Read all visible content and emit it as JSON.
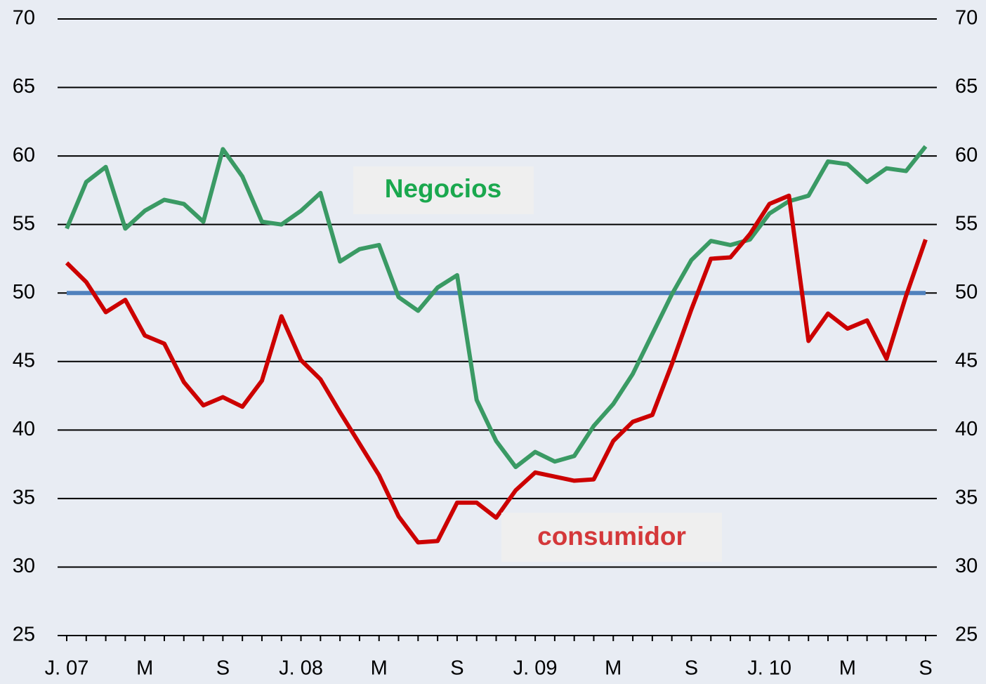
{
  "chart_data": {
    "type": "line",
    "categories": [
      "J. 07",
      null,
      null,
      null,
      "M",
      null,
      null,
      null,
      "S",
      null,
      null,
      null,
      "J. 08",
      null,
      null,
      null,
      "M",
      null,
      null,
      null,
      "S",
      null,
      null,
      null,
      "J. 09",
      null,
      null,
      null,
      "M",
      null,
      null,
      null,
      "S",
      null,
      null,
      null,
      "J. 10",
      null,
      null,
      null,
      "M",
      null,
      null,
      null,
      "S"
    ],
    "series": [
      {
        "name": "Negocios",
        "color": "#3a9a64",
        "label_color": "#1aa84e",
        "values": [
          54.7,
          58.1,
          59.2,
          54.7,
          56.0,
          56.8,
          56.5,
          55.2,
          60.5,
          58.5,
          55.2,
          55.0,
          56.0,
          57.3,
          52.3,
          53.2,
          53.5,
          49.7,
          48.7,
          50.4,
          51.3,
          42.2,
          39.2,
          37.3,
          38.4,
          37.7,
          38.1,
          40.3,
          41.9,
          44.1,
          47.0,
          49.9,
          52.4,
          53.8,
          53.5,
          53.9,
          55.8,
          56.7,
          57.1,
          59.6,
          59.4,
          58.1,
          59.1,
          58.9,
          60.7
        ]
      },
      {
        "name": "consumidor",
        "color": "#cc0000",
        "label_color": "#d4383a",
        "values": [
          52.2,
          50.8,
          48.6,
          49.5,
          46.9,
          46.3,
          43.5,
          41.8,
          42.4,
          41.7,
          43.6,
          48.3,
          45.1,
          43.7,
          41.3,
          39.0,
          36.7,
          33.7,
          31.8,
          31.9,
          34.7,
          34.7,
          33.6,
          35.6,
          36.9,
          36.6,
          36.3,
          36.4,
          39.2,
          40.6,
          41.1,
          44.8,
          48.8,
          52.5,
          52.6,
          54.3,
          56.5,
          57.1,
          46.5,
          48.5,
          47.4,
          48.0,
          45.2,
          49.8,
          53.9
        ]
      }
    ],
    "reference_line": {
      "value": 50,
      "color": "#4f81bd"
    },
    "ylim": [
      25,
      70
    ],
    "yticks": [
      25,
      30,
      35,
      40,
      45,
      50,
      55,
      60,
      65,
      70
    ],
    "y2lim": [
      25,
      70
    ],
    "y2ticks": [
      25,
      30,
      35,
      40,
      45,
      50,
      55,
      60,
      65,
      70
    ],
    "grid": true
  }
}
